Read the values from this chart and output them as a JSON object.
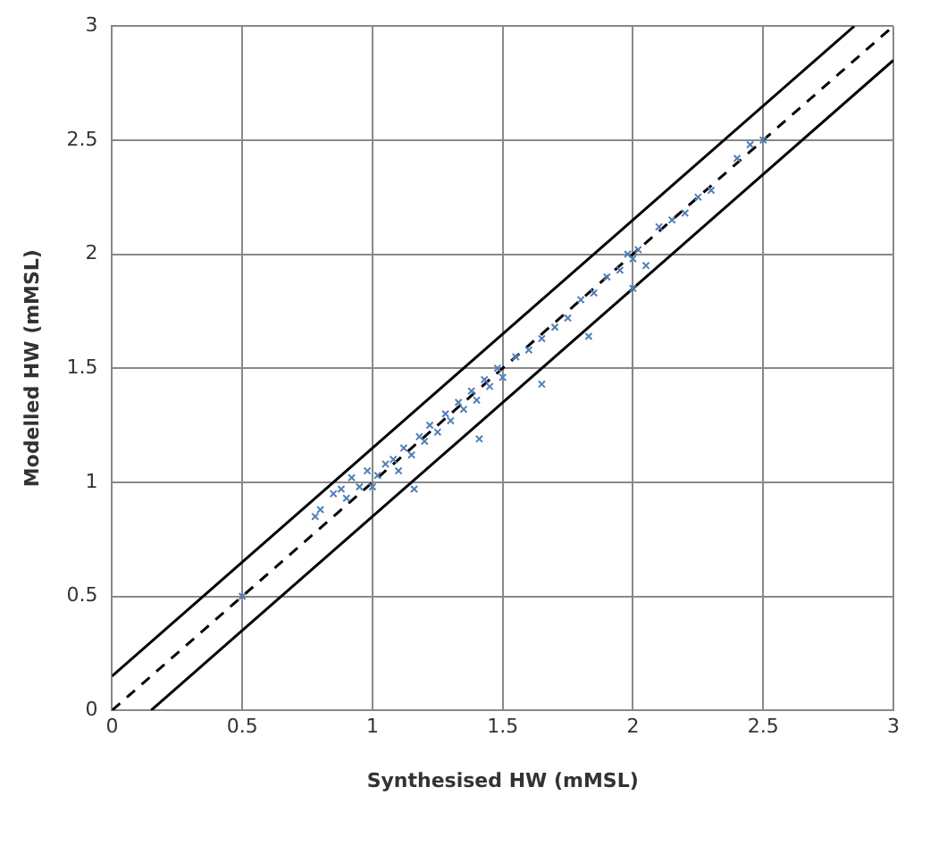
{
  "chart_data": {
    "type": "scatter",
    "xlabel": "Synthesised HW (mMSL)",
    "ylabel": "Modelled HW (mMSL)",
    "xlim": [
      0,
      3
    ],
    "ylim": [
      0,
      3
    ],
    "xticks": [
      0,
      0.5,
      1,
      1.5,
      2,
      2.5,
      3
    ],
    "yticks": [
      0,
      0.5,
      1,
      1.5,
      2,
      2.5,
      3
    ],
    "grid": true,
    "legend": false,
    "series": [
      {
        "type": "scatter",
        "marker": "cross",
        "color": "#4f7fb8",
        "x": [
          0.5,
          0.78,
          0.8,
          0.85,
          0.88,
          0.9,
          0.92,
          0.95,
          0.98,
          1.0,
          1.02,
          1.05,
          1.08,
          1.1,
          1.12,
          1.15,
          1.18,
          1.2,
          1.22,
          1.25,
          1.28,
          1.3,
          1.33,
          1.35,
          1.38,
          1.4,
          1.43,
          1.45,
          1.48,
          1.5,
          1.55,
          1.6,
          1.65,
          1.7,
          1.75,
          1.8,
          1.85,
          1.9,
          1.95,
          1.98,
          2.0,
          2.02,
          2.05,
          2.0,
          2.1,
          2.15,
          2.2,
          2.25,
          2.3,
          2.4,
          2.45,
          2.5,
          1.41,
          1.16,
          1.65,
          1.83
        ],
        "values": [
          0.5,
          0.85,
          0.88,
          0.95,
          0.97,
          0.93,
          1.02,
          0.98,
          1.05,
          0.98,
          1.03,
          1.08,
          1.1,
          1.05,
          1.15,
          1.12,
          1.2,
          1.18,
          1.25,
          1.22,
          1.3,
          1.27,
          1.35,
          1.32,
          1.4,
          1.36,
          1.45,
          1.42,
          1.5,
          1.46,
          1.55,
          1.58,
          1.63,
          1.68,
          1.72,
          1.8,
          1.83,
          1.9,
          1.93,
          2.0,
          1.98,
          2.02,
          1.95,
          1.85,
          2.12,
          2.15,
          2.18,
          2.25,
          2.28,
          2.42,
          2.48,
          2.5,
          1.19,
          0.97,
          1.43,
          1.64
        ]
      },
      {
        "type": "line",
        "color": "#000000",
        "line_style": "dashed",
        "marker": "none",
        "x": [
          0,
          3
        ],
        "values": [
          0,
          3
        ]
      },
      {
        "type": "line",
        "color": "#000000",
        "line_style": "solid",
        "marker": "none",
        "x": [
          0,
          2.85
        ],
        "values": [
          0.15,
          3
        ]
      },
      {
        "type": "line",
        "color": "#000000",
        "line_style": "solid",
        "marker": "none",
        "x": [
          0.15,
          3
        ],
        "values": [
          0,
          2.85
        ]
      }
    ]
  }
}
